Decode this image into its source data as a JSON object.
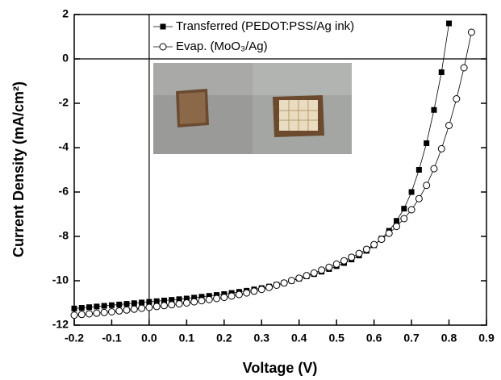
{
  "chart_data": {
    "type": "line",
    "x_label": "Voltage (V)",
    "y_label": "Current Density (mA/cm²)",
    "x": [
      -0.2,
      -0.18,
      -0.16,
      -0.14,
      -0.12,
      -0.1,
      -0.08,
      -0.06,
      -0.04,
      -0.02,
      0,
      0.02,
      0.04,
      0.06,
      0.08,
      0.1,
      0.12,
      0.14,
      0.16,
      0.18,
      0.2,
      0.22,
      0.24,
      0.26,
      0.28,
      0.3,
      0.32,
      0.34,
      0.36,
      0.38,
      0.4,
      0.42,
      0.44,
      0.46,
      0.48,
      0.5,
      0.52,
      0.54,
      0.56,
      0.58,
      0.6,
      0.62,
      0.64,
      0.66,
      0.68,
      0.7,
      0.72,
      0.74,
      0.76,
      0.78,
      0.8,
      0.82,
      0.84,
      0.86
    ],
    "series": [
      {
        "name": "Transferred (PEDOT:PSS/Ag ink)",
        "color": "#000000",
        "marker": "filled-square",
        "values": [
          -11.25,
          -11.22,
          -11.19,
          -11.16,
          -11.13,
          -11.1,
          -11.07,
          -11.04,
          -11.01,
          -10.98,
          -10.95,
          -10.92,
          -10.89,
          -10.86,
          -10.83,
          -10.8,
          -10.76,
          -10.72,
          -10.68,
          -10.64,
          -10.6,
          -10.55,
          -10.5,
          -10.45,
          -10.39,
          -10.33,
          -10.26,
          -10.18,
          -10.1,
          -10.0,
          -9.9,
          -9.8,
          -9.7,
          -9.59,
          -9.47,
          -9.34,
          -9.2,
          -9.04,
          -8.86,
          -8.65,
          -8.4,
          -8.1,
          -7.75,
          -7.3,
          -6.75,
          -6.0,
          -5.0,
          -3.8,
          -2.3,
          -0.6,
          1.6,
          null,
          null,
          null
        ]
      },
      {
        "name": "Evap. (MoO₃/Ag)",
        "color": "#000000",
        "marker": "open-circle",
        "values": [
          -11.55,
          -11.52,
          -11.49,
          -11.46,
          -11.43,
          -11.4,
          -11.36,
          -11.32,
          -11.28,
          -11.24,
          -11.2,
          -11.16,
          -11.12,
          -11.08,
          -11.04,
          -11.0,
          -10.95,
          -10.9,
          -10.85,
          -10.8,
          -10.75,
          -10.69,
          -10.62,
          -10.55,
          -10.47,
          -10.39,
          -10.3,
          -10.2,
          -10.1,
          -9.99,
          -9.88,
          -9.77,
          -9.65,
          -9.52,
          -9.39,
          -9.25,
          -9.1,
          -8.94,
          -8.77,
          -8.58,
          -8.37,
          -8.13,
          -7.86,
          -7.55,
          -7.2,
          -6.8,
          -6.3,
          -5.7,
          -4.95,
          -4.05,
          -3.0,
          -1.8,
          -0.4,
          1.2
        ]
      }
    ],
    "xlim": [
      -0.2,
      0.9
    ],
    "ylim": [
      -12,
      2
    ],
    "xticks": [
      -0.2,
      -0.1,
      {
        "value": 0,
        "label": "0.0"
      },
      0.1,
      0.2,
      0.3,
      0.4,
      0.5,
      0.6,
      0.7,
      0.8,
      0.9
    ],
    "yticks": [
      -12,
      -10,
      -8,
      -6,
      -4,
      -2,
      0,
      2
    ],
    "zero_lines": true,
    "legend": "upper center"
  }
}
